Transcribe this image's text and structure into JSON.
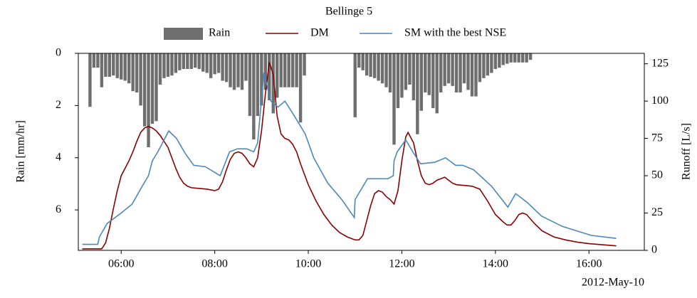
{
  "chart_data": {
    "type": "combo",
    "title": "Bellinge 5",
    "x_offset_label": "2012-May-10",
    "xlim": [
      "05:05",
      "17:11"
    ],
    "xticks": [
      "06:00",
      "08:00",
      "10:00",
      "12:00",
      "14:00",
      "16:00"
    ],
    "ylim": [
      0,
      7.55
    ],
    "y_inverted": true,
    "yticks": [
      0,
      2,
      4,
      6
    ],
    "y_label": "Rain [mm/hr]",
    "y2lim": [
      0,
      132
    ],
    "y2ticks": [
      0,
      25,
      50,
      75,
      100,
      125
    ],
    "y2_label": "Runoff [L/s]",
    "series": [
      {
        "name": "Rain",
        "type": "bar",
        "color": "#6e6e6e",
        "x": [
          "05:20",
          "05:25",
          "05:30",
          "05:35",
          "05:40",
          "05:45",
          "05:50",
          "05:55",
          "06:00",
          "06:05",
          "06:10",
          "06:15",
          "06:20",
          "06:25",
          "06:30",
          "06:35",
          "06:40",
          "06:45",
          "06:50",
          "06:55",
          "07:00",
          "07:05",
          "07:10",
          "07:15",
          "07:20",
          "07:25",
          "07:30",
          "07:35",
          "07:40",
          "07:45",
          "07:50",
          "07:55",
          "08:00",
          "08:05",
          "08:10",
          "08:15",
          "08:20",
          "08:25",
          "08:30",
          "08:35",
          "08:40",
          "08:45",
          "08:50",
          "08:55",
          "09:00",
          "09:05",
          "09:10",
          "09:15",
          "09:20",
          "09:25",
          "09:30",
          "09:35",
          "09:40",
          "09:45",
          "09:50",
          "09:55",
          "11:00",
          "11:05",
          "11:10",
          "11:15",
          "11:20",
          "11:25",
          "11:30",
          "11:35",
          "11:40",
          "11:45",
          "11:50",
          "11:55",
          "12:00",
          "12:05",
          "12:10",
          "12:15",
          "12:20",
          "12:25",
          "12:30",
          "12:35",
          "12:40",
          "12:45",
          "12:50",
          "12:55",
          "13:00",
          "13:05",
          "13:10",
          "13:15",
          "13:20",
          "13:25",
          "13:30",
          "13:35",
          "13:40",
          "13:45",
          "13:50",
          "13:55",
          "14:00",
          "14:05",
          "14:10",
          "14:15",
          "14:20",
          "14:25",
          "14:30",
          "14:35",
          "14:40",
          "14:45"
        ],
        "values": [
          2.05,
          0.55,
          0.55,
          1.3,
          0.9,
          0.9,
          0.85,
          0.95,
          1.0,
          1.05,
          1.15,
          1.45,
          1.5,
          2.0,
          2.8,
          3.6,
          2.7,
          2.6,
          1.2,
          0.95,
          0.9,
          0.85,
          0.75,
          0.65,
          0.6,
          0.6,
          0.6,
          0.55,
          0.6,
          0.7,
          0.75,
          0.95,
          0.8,
          0.75,
          1.05,
          1.1,
          1.3,
          1.4,
          1.3,
          1.4,
          1.05,
          2.4,
          3.3,
          2.4,
          2.0,
          1.4,
          1.8,
          2.3,
          1.7,
          1.3,
          1.3,
          1.3,
          1.3,
          1.3,
          2.65,
          0.85,
          2.45,
          0.55,
          0.65,
          0.85,
          0.9,
          0.95,
          1.05,
          1.15,
          1.3,
          1.5,
          3.5,
          2.1,
          1.7,
          1.4,
          1.2,
          1.8,
          3.1,
          2.2,
          1.5,
          1.6,
          2.1,
          2.3,
          1.5,
          1.25,
          1.15,
          1.25,
          1.5,
          1.5,
          1.15,
          1.4,
          1.65,
          1.65,
          1.1,
          0.95,
          0.85,
          0.75,
          0.6,
          0.55,
          0.45,
          0.4,
          0.35,
          0.35,
          0.35,
          0.35,
          0.35,
          0.25
        ]
      },
      {
        "name": "DM",
        "type": "line",
        "color": "#8b0000",
        "axis": "y2",
        "x": [
          "05:10",
          "05:35",
          "05:40",
          "05:45",
          "05:50",
          "05:55",
          "06:00",
          "06:05",
          "06:10",
          "06:15",
          "06:20",
          "06:25",
          "06:30",
          "06:35",
          "06:40",
          "06:45",
          "06:50",
          "06:55",
          "07:00",
          "07:05",
          "07:10",
          "07:15",
          "07:20",
          "07:25",
          "07:30",
          "07:40",
          "07:50",
          "08:00",
          "08:05",
          "08:10",
          "08:15",
          "08:20",
          "08:25",
          "08:30",
          "08:35",
          "08:40",
          "08:45",
          "08:50",
          "08:55",
          "09:00",
          "09:05",
          "09:10",
          "09:15",
          "09:20",
          "09:25",
          "09:30",
          "09:35",
          "09:40",
          "09:45",
          "09:50",
          "09:55",
          "10:00",
          "10:10",
          "10:20",
          "10:30",
          "10:40",
          "10:50",
          "11:00",
          "11:05",
          "11:10",
          "11:15",
          "11:20",
          "11:25",
          "11:30",
          "11:35",
          "11:40",
          "11:45",
          "11:50",
          "11:55",
          "12:00",
          "12:05",
          "12:08",
          "12:15",
          "12:20",
          "12:25",
          "12:30",
          "12:35",
          "12:40",
          "12:45",
          "12:50",
          "12:55",
          "13:00",
          "13:05",
          "13:10",
          "13:20",
          "13:30",
          "13:40",
          "13:50",
          "14:00",
          "14:10",
          "14:15",
          "14:20",
          "14:25",
          "14:30",
          "14:35",
          "14:40",
          "14:50",
          "15:00",
          "15:15",
          "15:30",
          "15:45",
          "16:00",
          "16:35"
        ],
        "values": [
          1,
          1,
          5,
          15,
          28,
          40,
          50,
          55,
          60,
          66,
          73,
          79,
          82,
          83,
          82,
          80,
          77,
          73,
          69,
          62,
          55,
          49,
          45,
          43,
          42,
          41.5,
          41,
          40,
          41,
          46,
          54,
          61,
          65,
          66,
          65,
          62,
          58,
          56,
          62,
          80,
          105,
          126,
          118,
          90,
          78,
          75,
          74,
          71,
          66,
          58,
          51,
          44,
          33,
          24,
          17,
          12,
          9,
          7,
          7,
          10,
          20,
          30,
          38,
          40,
          39,
          36,
          34,
          31,
          40,
          60,
          76,
          79,
          72,
          60,
          50,
          45,
          44,
          45,
          47,
          48,
          49,
          47,
          45,
          44,
          43.5,
          43,
          41,
          33,
          24,
          19,
          17,
          17,
          20,
          24,
          25,
          24,
          18,
          13,
          9,
          7,
          5.5,
          4.5,
          3
        ]
      },
      {
        "name": "SM with the best NSE",
        "type": "line",
        "color": "#4a87bd",
        "axis": "y2",
        "x": [
          "05:10",
          "05:30",
          "05:32",
          "05:42",
          "06:00",
          "06:14",
          "06:27",
          "06:35",
          "06:40",
          "06:47",
          "07:01",
          "07:11",
          "07:22",
          "07:33",
          "07:48",
          "08:07",
          "08:19",
          "08:29",
          "08:41",
          "08:50",
          "08:55",
          "09:03",
          "09:12",
          "09:21",
          "09:30",
          "09:41",
          "09:56",
          "10:07",
          "10:25",
          "10:43",
          "10:59",
          "11:00",
          "11:16",
          "11:29",
          "11:42",
          "11:49",
          "11:50",
          "11:54",
          "12:05",
          "12:14",
          "12:24",
          "12:42",
          "12:56",
          "13:09",
          "13:18",
          "13:32",
          "13:55",
          "14:16",
          "14:26",
          "14:41",
          "14:59",
          "15:26",
          "16:03",
          "16:35"
        ],
        "values": [
          4,
          4,
          9,
          18,
          25,
          31,
          43,
          50,
          60,
          66,
          80,
          75,
          65,
          57,
          56,
          50,
          66,
          68,
          68,
          66,
          72,
          119,
          100,
          96,
          100,
          91,
          78,
          62,
          45,
          34,
          22,
          34,
          48,
          48,
          48,
          50,
          60,
          66,
          74,
          66,
          58,
          59,
          62,
          57,
          57,
          54,
          43,
          29,
          38,
          32,
          23,
          16,
          10,
          8
        ]
      }
    ]
  }
}
